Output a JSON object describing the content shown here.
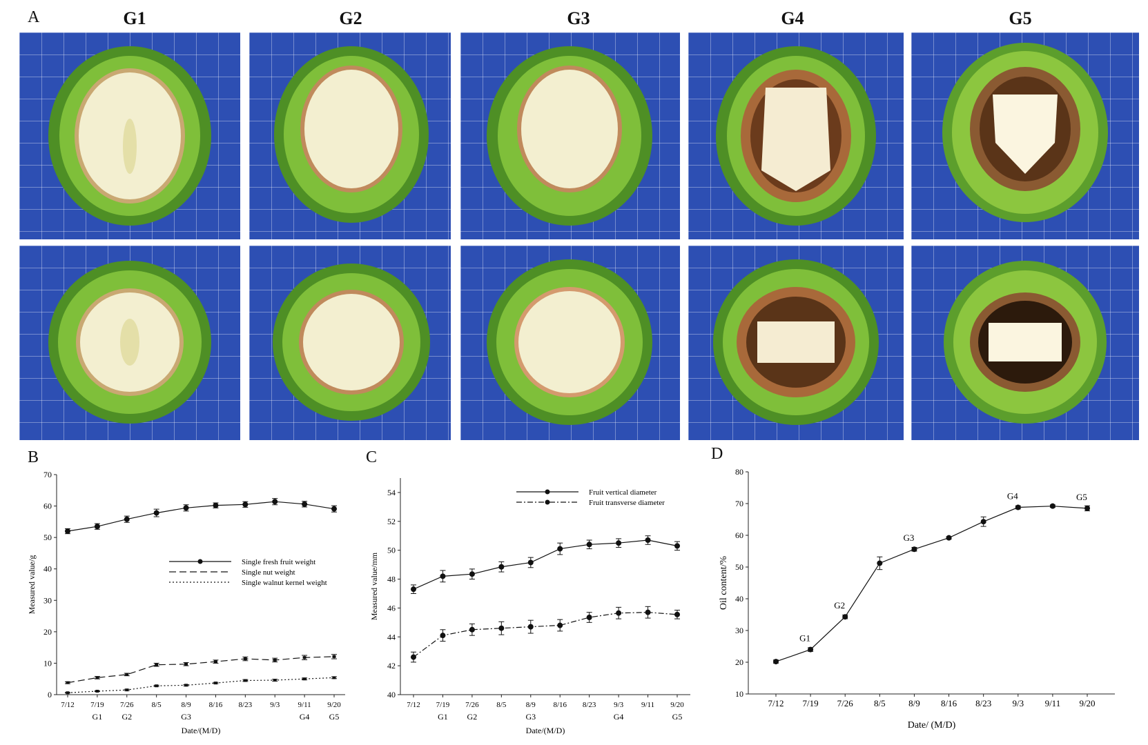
{
  "panel_letters": {
    "a": "A",
    "b": "B",
    "c": "C",
    "d": "D"
  },
  "stages": [
    "G1",
    "G2",
    "G3",
    "G4",
    "G5"
  ],
  "photo_colors": {
    "background": "#2d4fb3",
    "husk": "#5c9e2c",
    "husk_light": "#8cc63f",
    "kernel": "#f3efd0",
    "shell_brown": "#a8693a"
  },
  "chart_data": [
    {
      "id": "B",
      "type": "line",
      "categories": [
        "7/12",
        "7/19",
        "7/26",
        "8/5",
        "8/9",
        "8/16",
        "8/23",
        "9/3",
        "9/11",
        "9/20"
      ],
      "stage_marks": [
        "",
        "G1",
        "G2",
        "",
        "G3",
        "",
        "",
        "",
        "G4",
        "G5"
      ],
      "series": [
        {
          "name": "Single fresh fruit weight",
          "values": [
            52.0,
            53.5,
            55.8,
            57.8,
            59.4,
            60.2,
            60.5,
            61.4,
            60.6,
            59.1
          ],
          "errors": [
            0.8,
            0.9,
            1.0,
            1.2,
            1.0,
            0.8,
            0.9,
            1.0,
            0.9,
            1.0
          ],
          "style": "solid",
          "marker": "circle"
        },
        {
          "name": "Single nut weight",
          "values": [
            3.8,
            5.4,
            6.4,
            9.5,
            9.7,
            10.5,
            11.4,
            11.0,
            11.8,
            12.1
          ],
          "errors": [
            0.3,
            0.4,
            0.4,
            0.5,
            0.5,
            0.5,
            0.6,
            0.6,
            0.7,
            0.7
          ],
          "style": "dash",
          "marker": "square"
        },
        {
          "name": "Single walnut kernel weight",
          "values": [
            0.6,
            1.1,
            1.5,
            2.8,
            3.0,
            3.7,
            4.5,
            4.6,
            5.0,
            5.4
          ],
          "errors": [
            0.1,
            0.1,
            0.2,
            0.2,
            0.2,
            0.2,
            0.3,
            0.3,
            0.3,
            0.3
          ],
          "style": "dot",
          "marker": "square"
        }
      ],
      "ylabel": "Measured value/g",
      "xlabel": "Date/(M/D)",
      "ylim": [
        0,
        70
      ],
      "yticks": [
        0,
        10,
        20,
        30,
        40,
        50,
        60,
        70
      ],
      "legend_position": "middle-right"
    },
    {
      "id": "C",
      "type": "line",
      "categories": [
        "7/12",
        "7/19",
        "7/26",
        "8/5",
        "8/9",
        "8/16",
        "8/23",
        "9/3",
        "9/11",
        "9/20"
      ],
      "stage_marks": [
        "",
        "G1",
        "G2",
        "",
        "G3",
        "",
        "",
        "G4",
        "",
        "G5"
      ],
      "series": [
        {
          "name": "Fruit vertical diameter",
          "values": [
            47.3,
            48.2,
            48.35,
            48.85,
            49.15,
            50.1,
            50.4,
            50.5,
            50.7,
            50.3
          ],
          "errors": [
            0.3,
            0.4,
            0.35,
            0.35,
            0.35,
            0.4,
            0.3,
            0.3,
            0.3,
            0.3
          ],
          "style": "solid",
          "marker": "circle"
        },
        {
          "name": "Fruit transverse diameter",
          "values": [
            42.6,
            44.1,
            44.5,
            44.6,
            44.7,
            44.8,
            45.35,
            45.65,
            45.7,
            45.55
          ],
          "errors": [
            0.35,
            0.4,
            0.4,
            0.45,
            0.45,
            0.4,
            0.35,
            0.4,
            0.4,
            0.3
          ],
          "style": "dashdot",
          "marker": "circle"
        }
      ],
      "ylabel": "Measured value/mm",
      "xlabel": "Date/(M/D)",
      "ylim": [
        40,
        55
      ],
      "yticks": [
        40,
        42,
        44,
        46,
        48,
        50,
        52,
        54
      ],
      "legend_position": "top-right"
    },
    {
      "id": "D",
      "type": "line",
      "categories": [
        "7/12",
        "7/19",
        "7/26",
        "8/5",
        "8/9",
        "8/16",
        "8/23",
        "9/3",
        "9/11",
        "9/20"
      ],
      "point_labels": [
        "",
        "G1",
        "G2",
        "",
        "G3",
        "",
        "",
        "G4",
        "",
        "G5"
      ],
      "series": [
        {
          "name": "Oil content",
          "values": [
            20.2,
            24.0,
            34.3,
            51.2,
            55.6,
            59.2,
            64.3,
            68.8,
            69.2,
            68.5
          ],
          "errors": [
            0.5,
            0.6,
            0.6,
            2.0,
            0.6,
            0.4,
            1.5,
            0.5,
            0.4,
            0.8
          ],
          "style": "solid",
          "marker": "circle"
        }
      ],
      "ylabel": "Oil content/%",
      "xlabel": "Date/ (M/D)",
      "ylim": [
        10,
        80
      ],
      "yticks": [
        10,
        20,
        30,
        40,
        50,
        60,
        70,
        80
      ]
    }
  ]
}
